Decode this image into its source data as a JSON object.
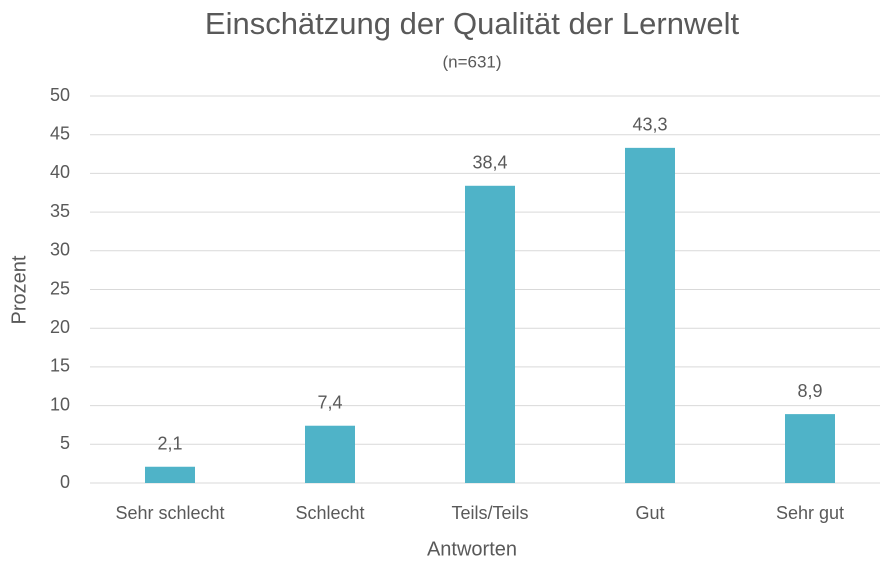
{
  "chart_data": {
    "type": "bar",
    "title": "Einschätzung der Qualität der Lernwelt",
    "subtitle": "(n=631)",
    "x_label": "Antworten",
    "y_label": "Prozent",
    "categories": [
      "Sehr schlecht",
      "Schlecht",
      "Teils/Teils",
      "Gut",
      "Sehr gut"
    ],
    "values": [
      2.1,
      7.4,
      38.4,
      43.3,
      8.9
    ],
    "value_labels": [
      "2,1",
      "7,4",
      "38,4",
      "43,3",
      "8,9"
    ],
    "color": "#4fb3c8",
    "ylim": [
      0,
      50
    ],
    "yticks": [
      0,
      5,
      10,
      15,
      20,
      25,
      30,
      35,
      40,
      45,
      50
    ],
    "grid": true
  }
}
